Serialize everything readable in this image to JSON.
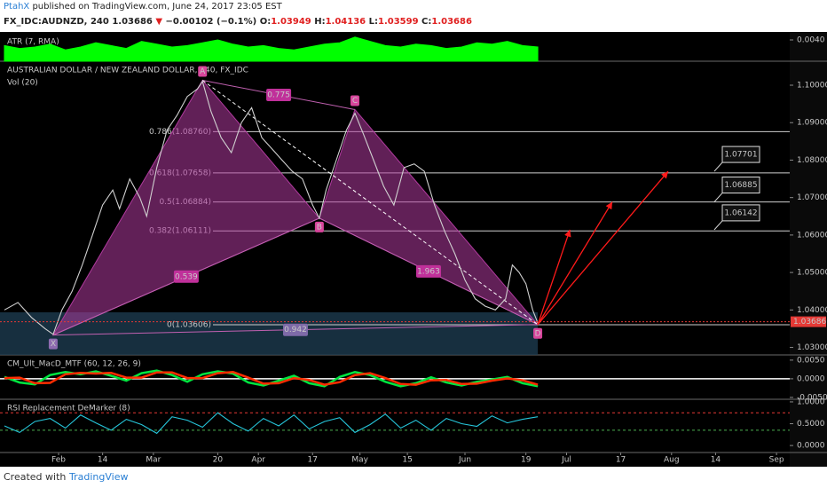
{
  "header": {
    "author": "PtahX",
    "published": " published on TradingView.com, June 24, 2017 23:05 EST",
    "symbol": "FX_IDC:AUDNZD, 240",
    "last": "1.03686",
    "arrow": "▼",
    "change": "−0.00102 (−0.1%)",
    "ohlc": [
      {
        "key": "O:",
        "value": "1.03949"
      },
      {
        "key": "H:",
        "value": "1.04136"
      },
      {
        "key": "L:",
        "value": "1.03599"
      },
      {
        "key": "C:",
        "value": "1.03686"
      }
    ]
  },
  "footer": {
    "created": "Created with",
    "brand": "TradingView"
  },
  "chart_data": [
    {
      "type": "area",
      "title": "ATR (7, RMA)",
      "color": "#00ff00",
      "x": [
        16,
        20.5,
        25,
        29.5,
        34,
        38.5,
        43,
        47.5,
        52,
        56.5,
        61,
        65.5,
        70,
        74.5,
        79,
        83.5,
        88,
        92.5,
        97,
        101.5,
        106,
        110.5,
        115,
        119.5,
        124,
        128.5,
        133,
        137.5,
        142,
        146.5,
        151,
        155.5,
        160,
        164.5,
        169,
        173.5
      ],
      "values": [
        0.0036,
        0.0034,
        0.0035,
        0.0037,
        0.0033,
        0.0035,
        0.0038,
        0.0036,
        0.0034,
        0.0039,
        0.0037,
        0.0035,
        0.0036,
        0.0038,
        0.004,
        0.0037,
        0.0035,
        0.0036,
        0.0034,
        0.0033,
        0.0035,
        0.0037,
        0.0038,
        0.0042,
        0.0039,
        0.0036,
        0.0035,
        0.0037,
        0.0036,
        0.0034,
        0.0035,
        0.0038,
        0.0037,
        0.0039,
        0.0036,
        0.0035
      ],
      "xlim": [
        14.7,
        247.9
      ],
      "ylim": [
        0.0025,
        0.0045
      ],
      "yticks": [
        {
          "value": 0.004,
          "label": "0.0040"
        }
      ]
    },
    {
      "type": "line",
      "title": "AUSTRALIAN DOLLAR / NEW ZEALAND DOLLAR, 240, FX_IDC",
      "subtitle": "Vol (20)",
      "x": [
        16,
        20,
        24,
        28,
        30.4,
        33,
        36,
        39,
        42,
        45,
        48,
        50,
        53,
        56,
        58,
        61,
        64,
        67,
        70,
        73,
        74.5,
        77,
        80,
        83,
        86,
        89,
        92,
        95,
        98,
        101,
        104,
        107,
        109,
        111,
        114,
        117,
        119.5,
        122,
        125,
        128,
        131,
        134,
        137,
        140,
        143,
        146,
        149,
        152,
        155,
        158,
        161,
        164,
        166,
        168,
        170,
        172,
        173.5
      ],
      "series": [
        {
          "color": "#d0d0d0",
          "values": [
            1.04,
            1.042,
            1.038,
            1.035,
            1.0335,
            1.04,
            1.045,
            1.052,
            1.06,
            1.068,
            1.072,
            1.067,
            1.075,
            1.07,
            1.065,
            1.078,
            1.088,
            1.092,
            1.097,
            1.099,
            1.101,
            1.093,
            1.086,
            1.082,
            1.09,
            1.094,
            1.086,
            1.083,
            1.08,
            1.077,
            1.075,
            1.068,
            1.0645,
            1.072,
            1.08,
            1.088,
            1.0925,
            1.087,
            1.08,
            1.073,
            1.068,
            1.078,
            1.079,
            1.077,
            1.068,
            1.061,
            1.055,
            1.048,
            1.043,
            1.041,
            1.04,
            1.043,
            1.052,
            1.05,
            1.047,
            1.04,
            1.0365
          ]
        }
      ],
      "xlim": [
        14.7,
        247.9
      ],
      "ylim": [
        1.028,
        1.1064
      ],
      "yticks": [
        {
          "value": 1.1,
          "label": "1.10000"
        },
        {
          "value": 1.09,
          "label": "1.09000"
        },
        {
          "value": 1.08,
          "label": "1.08000"
        },
        {
          "value": 1.07,
          "label": "1.07000"
        },
        {
          "value": 1.06,
          "label": "1.06000"
        },
        {
          "value": 1.05,
          "label": "1.05000"
        },
        {
          "value": 1.04,
          "label": "1.04000"
        },
        {
          "value": 1.03,
          "label": "1.03000"
        }
      ],
      "xticks": [
        {
          "value": 32,
          "label": "Feb"
        },
        {
          "value": 45,
          "label": "14"
        },
        {
          "value": 60,
          "label": "Mar"
        },
        {
          "value": 79,
          "label": "20"
        },
        {
          "value": 91,
          "label": "Apr"
        },
        {
          "value": 107,
          "label": "17"
        },
        {
          "value": 121,
          "label": "May"
        },
        {
          "value": 135,
          "label": "15"
        },
        {
          "value": 152,
          "label": "Jun"
        },
        {
          "value": 170,
          "label": "19"
        },
        {
          "value": 182,
          "label": "Jul"
        },
        {
          "value": 198,
          "label": "17"
        },
        {
          "value": 213,
          "label": "Aug"
        },
        {
          "value": 226,
          "label": "14"
        },
        {
          "value": 244,
          "label": "Sep"
        }
      ],
      "last_price": 1.03686,
      "fib_levels": [
        {
          "value": 1.0876,
          "label": "0.786(1.08760)"
        },
        {
          "value": 1.07658,
          "label": "0.618(1.07658)"
        },
        {
          "value": 1.06884,
          "label": "0.5(1.06884)"
        },
        {
          "value": 1.06111,
          "label": "0.382(1.06111)"
        },
        {
          "value": 1.03606,
          "label": "0(1.03606)"
        }
      ],
      "pattern": {
        "color": "#b03a9e",
        "points": [
          {
            "label": "X",
            "x": 30.4,
            "y": 1.0333
          },
          {
            "label": "A",
            "x": 74.5,
            "y": 1.1013
          },
          {
            "label": "B",
            "x": 109,
            "y": 1.0645
          },
          {
            "label": "C",
            "x": 119.5,
            "y": 1.0935
          },
          {
            "label": "D",
            "x": 173.5,
            "y": 1.0361
          }
        ],
        "ratios": [
          "0.775",
          "0.539",
          "1.963",
          "0.942"
        ]
      },
      "targets": [
        {
          "value": 1.07701,
          "x": 212
        },
        {
          "value": 1.06885,
          "x": 195.5
        },
        {
          "value": 1.06142,
          "x": 183
        }
      ]
    },
    {
      "type": "line",
      "title": "CM_Ult_MacD_MTF (60, 12, 26, 9)",
      "x": [
        16,
        20.5,
        25,
        29.5,
        34,
        38.5,
        43,
        47.5,
        52,
        56.5,
        61,
        65.5,
        70,
        74.5,
        79,
        83.5,
        88,
        92.5,
        97,
        101.5,
        106,
        110.5,
        115,
        119.5,
        124,
        128.5,
        133,
        137.5,
        142,
        146.5,
        151,
        155.5,
        160,
        164.5,
        169,
        173.5
      ],
      "series": [
        {
          "color": "#00e640",
          "values": [
            0.0005,
            -0.001,
            -0.0015,
            0.001,
            0.0018,
            0.0012,
            0.002,
            0.0008,
            -0.0005,
            0.0015,
            0.0022,
            0.001,
            -0.0008,
            0.0012,
            0.002,
            0.0014,
            -0.001,
            -0.0018,
            -0.0005,
            0.0008,
            -0.0012,
            -0.002,
            0.0005,
            0.0018,
            0.001,
            -0.0008,
            -0.002,
            -0.0012,
            0.0004,
            -0.001,
            -0.0018,
            -0.0008,
            -0.0002,
            0.0005,
            -0.0012,
            -0.002
          ]
        },
        {
          "color": "#ff2d00",
          "values": [
            0.0002,
            0.0003,
            -0.0012,
            -0.0011,
            0.0012,
            0.0016,
            0.0014,
            0.0016,
            0.0003,
            0.0003,
            0.0017,
            0.0017,
            0.0002,
            0.0002,
            0.0015,
            0.0018,
            0.0003,
            -0.0013,
            -0.0012,
            0.0002,
            -0.0003,
            -0.0016,
            -0.0009,
            0.001,
            0.0015,
            0.0002,
            -0.0014,
            -0.0016,
            -0.0004,
            -0.0003,
            -0.0014,
            -0.0013,
            -0.0005,
            0.0001,
            -0.0004,
            -0.0016
          ]
        }
      ],
      "xlim": [
        14.7,
        247.9
      ],
      "ylim": [
        -0.0055,
        0.0064
      ],
      "zero_line": 0,
      "yticks": [
        {
          "value": 0.005,
          "label": "0.0050"
        },
        {
          "value": 0,
          "label": "0.0000"
        },
        {
          "value": -0.005,
          "label": "-0.0050"
        }
      ]
    },
    {
      "type": "line",
      "title": "RSI Replacement DeMarker (8)",
      "x": [
        16,
        20.5,
        25,
        29.5,
        34,
        38.5,
        43,
        47.5,
        52,
        56.5,
        61,
        65.5,
        70,
        74.5,
        79,
        83.5,
        88,
        92.5,
        97,
        101.5,
        106,
        110.5,
        115,
        119.5,
        124,
        128.5,
        133,
        137.5,
        142,
        146.5,
        151,
        155.5,
        160,
        164.5,
        169,
        173.5
      ],
      "series": [
        {
          "color": "#26c6da",
          "values": [
            0.45,
            0.3,
            0.55,
            0.62,
            0.4,
            0.7,
            0.52,
            0.35,
            0.6,
            0.48,
            0.28,
            0.66,
            0.58,
            0.42,
            0.75,
            0.5,
            0.33,
            0.62,
            0.45,
            0.7,
            0.38,
            0.55,
            0.64,
            0.3,
            0.48,
            0.72,
            0.4,
            0.58,
            0.35,
            0.62,
            0.5,
            0.44,
            0.68,
            0.52,
            0.6,
            0.66
          ]
        }
      ],
      "xlim": [
        14.7,
        247.9
      ],
      "ylim": [
        -0.16,
        1.06
      ],
      "levels": [
        0.75,
        0.35
      ],
      "yticks": [
        {
          "value": 1,
          "label": "1.0000"
        },
        {
          "value": 0.5,
          "label": "0.5000"
        },
        {
          "value": 0,
          "label": "0.0000"
        }
      ]
    }
  ]
}
